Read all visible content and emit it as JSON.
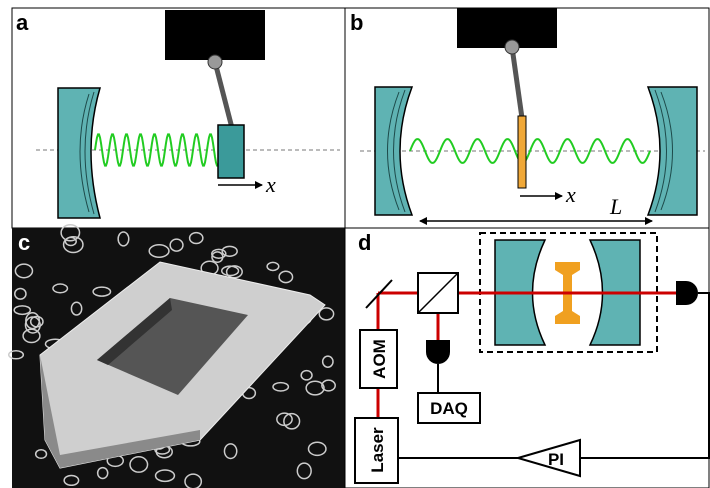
{
  "panels": [
    {
      "label": "a",
      "axis_label": "x"
    },
    {
      "label": "b",
      "axis_label": "x",
      "length_label": "L"
    },
    {
      "label": "c"
    },
    {
      "label": "d",
      "components": [
        "AOM",
        "DAQ",
        "Laser",
        "PI"
      ]
    }
  ]
}
